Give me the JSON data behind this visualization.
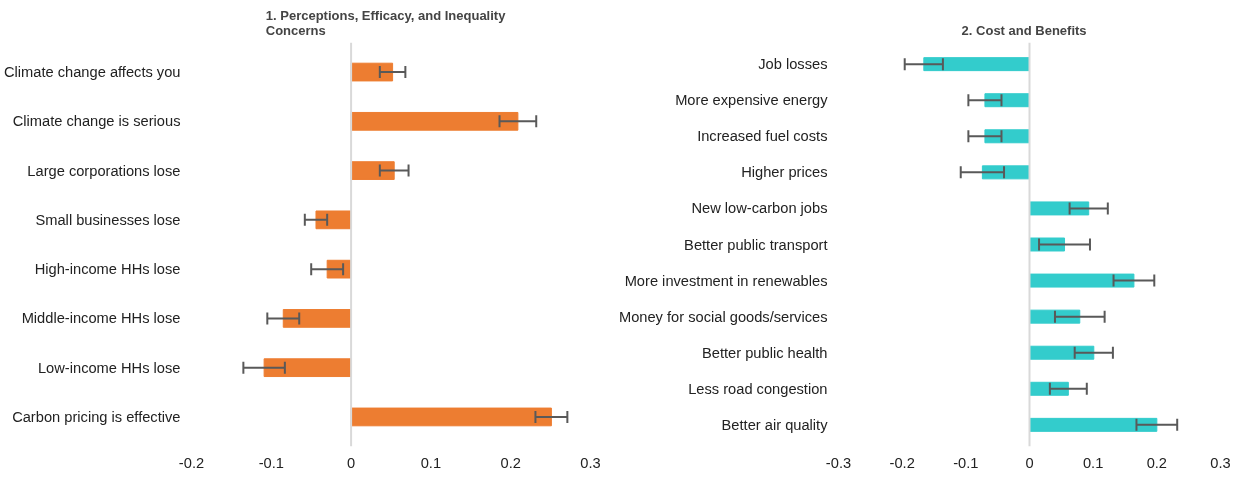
{
  "chart_data": [
    {
      "type": "bar",
      "orientation": "horizontal",
      "title": "1.    Perceptions, Efficacy, and Inequality Concerns",
      "categories": [
        "Climate change affects you",
        "Climate change is serious",
        "Large corporations lose",
        "Small businesses lose",
        "High-income HHs lose",
        "Middle-income HHs lose",
        "Low-income HHs lose",
        "Carbon pricing is effective"
      ],
      "series": [
        {
          "color": "#ed7d31",
          "values": [
            0.052,
            0.209,
            0.054,
            -0.044,
            -0.03,
            -0.085,
            -0.109,
            0.251
          ],
          "errors": [
            0.016,
            0.023,
            0.018,
            0.014,
            0.02,
            0.02,
            0.026,
            0.02
          ]
        }
      ],
      "xlim": [
        -0.2,
        0.3
      ],
      "xticks": [
        -0.2,
        -0.1,
        0,
        0.1,
        0.2,
        0.3
      ],
      "grid": false,
      "ref_lines": [
        {
          "axis": "x",
          "value": 0,
          "color": "#d9d9d9"
        }
      ]
    },
    {
      "type": "bar",
      "orientation": "horizontal",
      "title": "2.    Cost and Benefits",
      "categories": [
        "Job losses",
        "More expensive energy",
        "Increased fuel costs",
        "Higher prices",
        "New low-carbon jobs",
        "Better public transport",
        "More investment in renewables",
        "Money for social goods/services",
        "Better public health",
        "Less road congestion",
        "Better air quality"
      ],
      "series": [
        {
          "color": "#33cccc",
          "values": [
            -0.166,
            -0.07,
            -0.07,
            -0.074,
            0.093,
            0.055,
            0.164,
            0.079,
            0.101,
            0.061,
            0.2
          ],
          "errors": [
            0.03,
            0.026,
            0.026,
            0.034,
            0.03,
            0.04,
            0.032,
            0.039,
            0.03,
            0.029,
            0.032
          ]
        }
      ],
      "xlim": [
        -0.3,
        0.3
      ],
      "xticks": [
        -0.3,
        -0.2,
        -0.1,
        0,
        0.1,
        0.2,
        0.3
      ],
      "grid": false,
      "ref_lines": [
        {
          "axis": "x",
          "value": 0,
          "color": "#d9d9d9"
        }
      ]
    }
  ]
}
